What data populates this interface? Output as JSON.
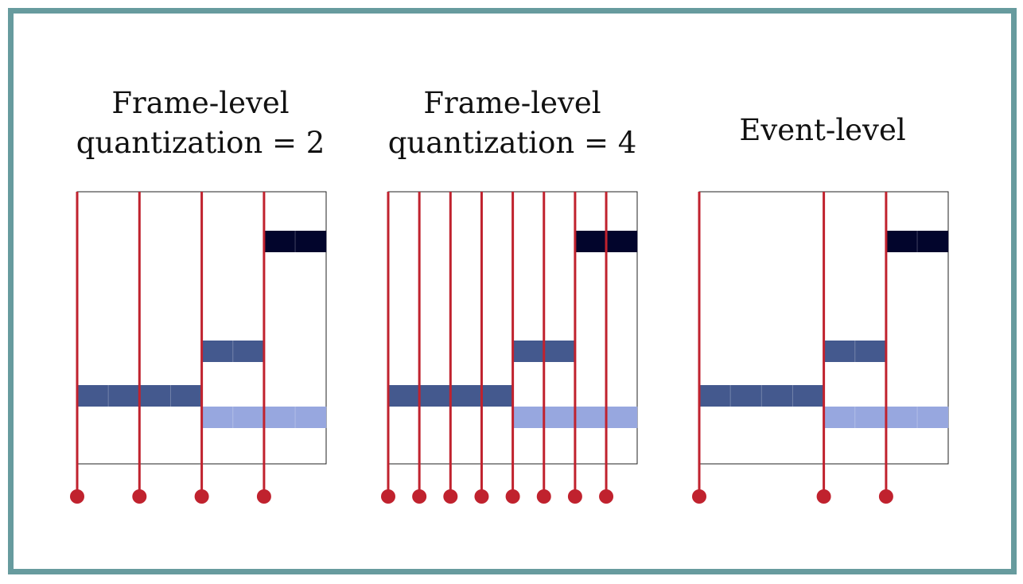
{
  "colors": {
    "frame_border": "#679b9e",
    "boundary_line": "#c0222e",
    "note_dark": "#02052c",
    "note_mid": "#44598e",
    "note_light": "#97a7df",
    "piano_roll_border": "#222222"
  },
  "panels": [
    {
      "id": "frame-q2",
      "title_lines": [
        "Frame-level",
        "quantization = 2"
      ],
      "boundaries": [
        0,
        1,
        2,
        3
      ],
      "bars": [
        {
          "row": 0,
          "start": 3,
          "end": 4,
          "shade": "dark",
          "cells": 2
        },
        {
          "row": 1,
          "start": 2,
          "end": 3,
          "shade": "mid",
          "cells": 2
        },
        {
          "row": 2,
          "start": 0,
          "end": 2,
          "shade": "mid",
          "cells": 4
        },
        {
          "row": 3,
          "start": 2,
          "end": 4,
          "shade": "light",
          "cells": 4
        }
      ]
    },
    {
      "id": "frame-q4",
      "title_lines": [
        "Frame-level",
        "quantization = 4"
      ],
      "boundaries": [
        0,
        0.5,
        1,
        1.5,
        2,
        2.5,
        3,
        3.5
      ],
      "bars": [
        {
          "row": 0,
          "start": 3,
          "end": 4,
          "shade": "dark",
          "cells": 2
        },
        {
          "row": 1,
          "start": 2,
          "end": 3,
          "shade": "mid",
          "cells": 2
        },
        {
          "row": 2,
          "start": 0,
          "end": 2,
          "shade": "mid",
          "cells": 4
        },
        {
          "row": 3,
          "start": 2,
          "end": 4,
          "shade": "light",
          "cells": 4
        }
      ]
    },
    {
      "id": "event-level",
      "title_lines": [
        "Event-level"
      ],
      "boundaries": [
        0,
        2,
        3
      ],
      "bars": [
        {
          "row": 0,
          "start": 3,
          "end": 4,
          "shade": "dark",
          "cells": 2
        },
        {
          "row": 1,
          "start": 2,
          "end": 3,
          "shade": "mid",
          "cells": 2
        },
        {
          "row": 2,
          "start": 0,
          "end": 2,
          "shade": "mid",
          "cells": 4
        },
        {
          "row": 3,
          "start": 2,
          "end": 4,
          "shade": "light",
          "cells": 4
        }
      ]
    }
  ]
}
